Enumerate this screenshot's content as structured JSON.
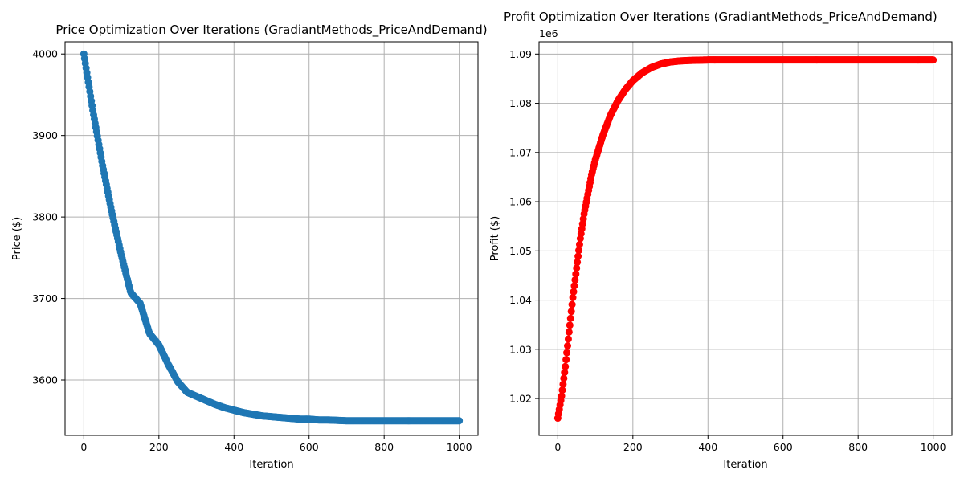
{
  "chart_data": [
    {
      "type": "scatter",
      "title": "Price Optimization Over Iterations (GradiantMethods_PriceAndDemand)",
      "xlabel": "Iteration",
      "ylabel": "Price ($)",
      "xlim": [
        -50,
        1050
      ],
      "ylim": [
        3532,
        4015
      ],
      "xticks": [
        0,
        200,
        400,
        600,
        800,
        1000
      ],
      "yticks": [
        3600,
        3700,
        3800,
        3900,
        4000
      ],
      "ytick_labels": [
        "3600",
        "3700",
        "3800",
        "3900",
        "4000"
      ],
      "offset_text": "",
      "color": "#1f77b4",
      "grid": true,
      "series": [
        {
          "x": [
            0,
            25,
            50,
            75,
            100,
            125,
            150,
            175,
            200,
            225,
            250,
            275,
            300,
            325,
            350,
            375,
            400,
            425,
            450,
            475,
            500,
            525,
            550,
            575,
            600,
            625,
            650,
            700,
            750,
            800,
            850,
            900,
            950,
            1000
          ],
          "y": [
            4000,
            3928,
            3863,
            3805,
            3753,
            3707,
            3694,
            3657,
            3643,
            3619,
            3598,
            3585,
            3580,
            3575,
            3570,
            3566,
            3563,
            3560,
            3558,
            3556,
            3555,
            3554,
            3553,
            3552,
            3552,
            3551,
            3551,
            3550,
            3550,
            3550,
            3550,
            3550,
            3550,
            3550
          ]
        }
      ]
    },
    {
      "type": "scatter",
      "title": "Profit Optimization Over Iterations (GradiantMethods_PriceAndDemand)",
      "xlabel": "Iteration",
      "ylabel": "Profit ($)",
      "xlim": [
        -50,
        1050
      ],
      "ylim": [
        1.0125,
        1.0925
      ],
      "xticks": [
        0,
        200,
        400,
        600,
        800,
        1000
      ],
      "yticks": [
        1.02,
        1.03,
        1.04,
        1.05,
        1.06,
        1.07,
        1.08,
        1.09
      ],
      "ytick_labels": [
        "1.02",
        "1.03",
        "1.04",
        "1.05",
        "1.06",
        "1.07",
        "1.08",
        "1.09"
      ],
      "offset_text": "1e6",
      "color": "#ff0000",
      "grid": true,
      "series": [
        {
          "x": [
            0,
            10,
            20,
            30,
            40,
            50,
            60,
            70,
            80,
            90,
            100,
            120,
            140,
            160,
            180,
            200,
            225,
            250,
            275,
            300,
            325,
            350,
            400,
            450,
            500,
            600,
            700,
            800,
            900,
            1000
          ],
          "y": [
            1.016,
            1.0205,
            1.0265,
            1.0335,
            1.0405,
            1.0465,
            1.0525,
            1.0575,
            1.0615,
            1.0655,
            1.0685,
            1.0735,
            1.0775,
            1.0805,
            1.0828,
            1.0846,
            1.0862,
            1.0873,
            1.088,
            1.0884,
            1.0886,
            1.0887,
            1.0888,
            1.0888,
            1.0888,
            1.0888,
            1.0888,
            1.0888,
            1.0888,
            1.0888
          ]
        }
      ]
    }
  ]
}
